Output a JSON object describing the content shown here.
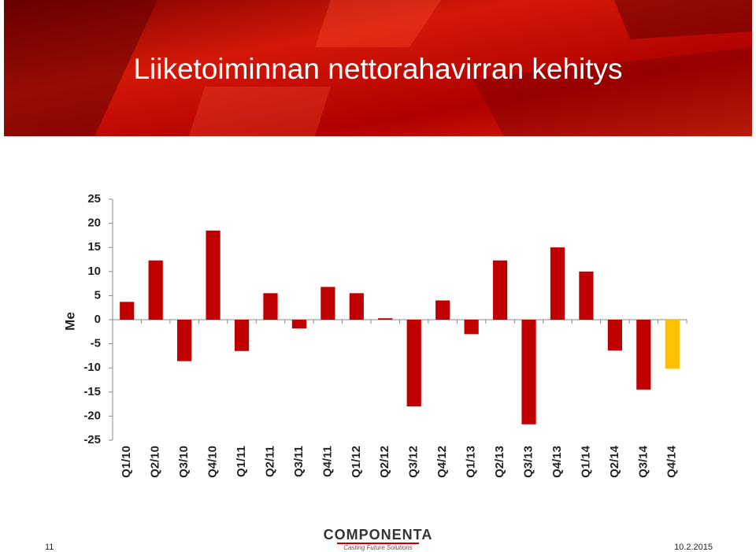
{
  "chart_data": {
    "type": "bar",
    "title": "Liiketoiminnan nettorahavirran kehitys",
    "y_label": "Me",
    "categories": [
      "Q1/10",
      "Q2/10",
      "Q3/10",
      "Q4/10",
      "Q1/11",
      "Q2/11",
      "Q3/11",
      "Q4/11",
      "Q1/12",
      "Q2/12",
      "Q3/12",
      "Q4/12",
      "Q1/13",
      "Q2/13",
      "Q3/13",
      "Q4/13",
      "Q1/14",
      "Q2/14",
      "Q3/14",
      "Q4/14"
    ],
    "values": [
      3.7,
      12.3,
      -8.6,
      18.5,
      -6.5,
      5.5,
      -1.8,
      6.8,
      5.5,
      0.3,
      -18,
      4,
      -3,
      12.3,
      -21.7,
      15,
      10,
      -6.4,
      -14.5,
      -10.2
    ],
    "colors": [
      "#c00000",
      "#c00000",
      "#c00000",
      "#c00000",
      "#c00000",
      "#c00000",
      "#c00000",
      "#c00000",
      "#c00000",
      "#c00000",
      "#c00000",
      "#c00000",
      "#c00000",
      "#c00000",
      "#c00000",
      "#c00000",
      "#c00000",
      "#c00000",
      "#c00000",
      "#ffc000"
    ],
    "ylim": [
      -25,
      25
    ],
    "yticks": [
      -25,
      -20,
      -15,
      -10,
      -5,
      0,
      5,
      10,
      15,
      20,
      25
    ],
    "grid": false
  },
  "footer": {
    "page": "11",
    "date": "10.2.2015",
    "logo": "COMPONENTA",
    "tagline": "Casting Future Solutions"
  }
}
